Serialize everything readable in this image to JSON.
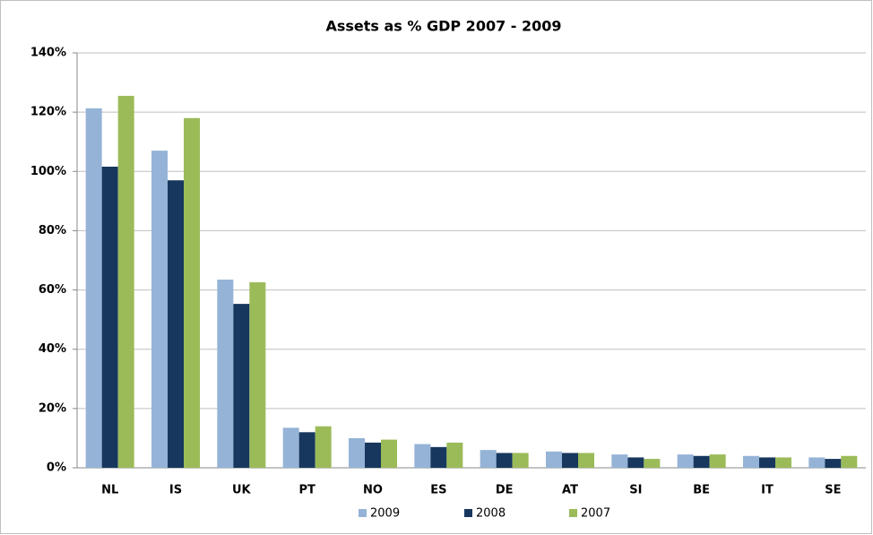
{
  "chart_data": {
    "type": "bar",
    "title": "Assets as % GDP 2007 - 2009",
    "categories": [
      "NL",
      "IS",
      "UK",
      "PT",
      "NO",
      "ES",
      "DE",
      "AT",
      "SI",
      "BE",
      "IT",
      "SE"
    ],
    "series": [
      {
        "name": "2009",
        "color": "#95b3d7",
        "values": [
          121.3,
          107,
          63.5,
          13.5,
          10,
          8,
          6,
          5.5,
          4.5,
          4.5,
          4,
          3.5
        ]
      },
      {
        "name": "2008",
        "color": "#17375e",
        "values": [
          101.6,
          97,
          55.3,
          12,
          8.5,
          7,
          5,
          5,
          3.5,
          4,
          3.5,
          3
        ]
      },
      {
        "name": "2007",
        "color": "#9bbb59",
        "values": [
          125.5,
          118,
          62.6,
          14,
          9.5,
          8.5,
          5,
          5,
          3,
          4.5,
          3.5,
          4
        ]
      }
    ],
    "ylim": [
      0,
      140
    ],
    "yticks": [
      {
        "value": 0,
        "label": "0%"
      },
      {
        "value": 20,
        "label": "20%"
      },
      {
        "value": 40,
        "label": "40%"
      },
      {
        "value": 60,
        "label": "60%"
      },
      {
        "value": 80,
        "label": "80%"
      },
      {
        "value": 100,
        "label": "100%"
      },
      {
        "value": 120,
        "label": "120%"
      },
      {
        "value": 140,
        "label": "140%"
      }
    ],
    "grid": true,
    "legend": "bottom"
  }
}
